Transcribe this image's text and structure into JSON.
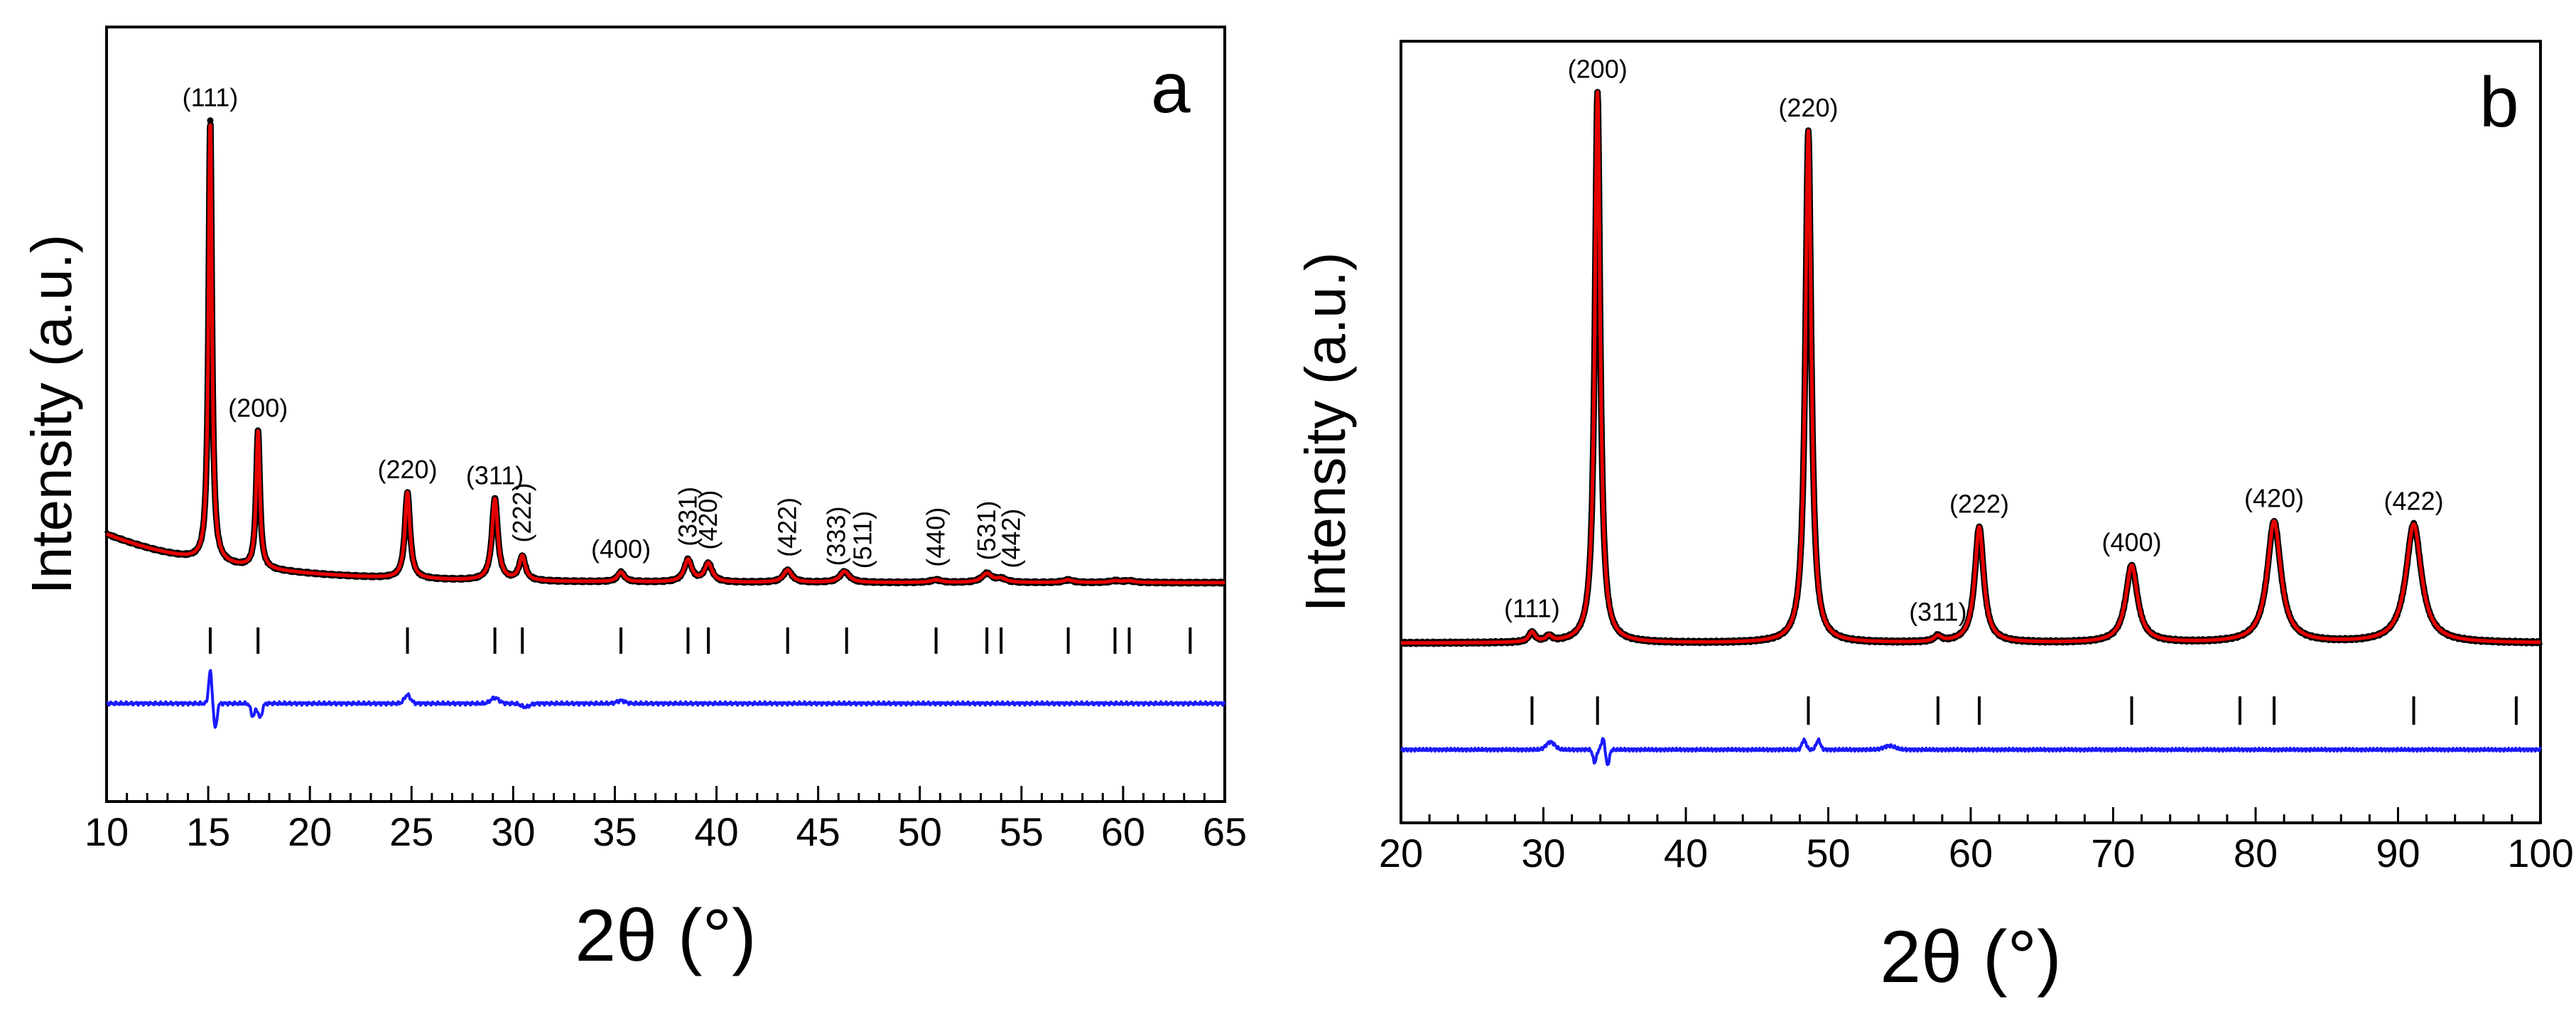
{
  "chart_data": [
    {
      "type": "line",
      "panel": "a",
      "xlabel": "2θ (°)",
      "ylabel": "Intensity (a.u.)",
      "xlim": [
        10,
        65
      ],
      "xticks": [
        10,
        15,
        20,
        25,
        30,
        35,
        40,
        45,
        50,
        55,
        60,
        65
      ],
      "yticks_shown": false,
      "series": [
        {
          "name": "observed",
          "style": "black dots"
        },
        {
          "name": "calculated",
          "style": "red line"
        },
        {
          "name": "difference",
          "style": "blue line"
        },
        {
          "name": "Bragg positions",
          "style": "black vertical ticks"
        }
      ],
      "background": {
        "start": 0.11,
        "end": 0.0,
        "decay": 6.0
      },
      "baseline": 0.0,
      "peaks": [
        {
          "label": "(111)",
          "pos": 15.1,
          "height": 1.0,
          "fwhm": 0.2
        },
        {
          "label": "(200)",
          "pos": 17.45,
          "height": 0.31,
          "fwhm": 0.22
        },
        {
          "label": "(220)",
          "pos": 24.8,
          "height": 0.195,
          "fwhm": 0.3
        },
        {
          "label": "(311)",
          "pos": 29.1,
          "height": 0.185,
          "fwhm": 0.34
        },
        {
          "label": "(222)",
          "pos": 30.45,
          "height": 0.055,
          "fwhm": 0.36
        },
        {
          "label": "(400)",
          "pos": 35.3,
          "height": 0.022,
          "fwhm": 0.4
        },
        {
          "label": "(331)",
          "pos": 38.6,
          "height": 0.05,
          "fwhm": 0.45
        },
        {
          "label": "(420)",
          "pos": 39.6,
          "height": 0.042,
          "fwhm": 0.45
        },
        {
          "label": "(422)",
          "pos": 43.5,
          "height": 0.028,
          "fwhm": 0.5
        },
        {
          "label": "(333)",
          "pos": 46.3,
          "height": 0.025,
          "fwhm": 0.55
        },
        {
          "label": "(511)",
          "pos": 46.4,
          "height": 0.0,
          "fwhm": 0.55
        },
        {
          "label": "(440)",
          "pos": 50.8,
          "height": 0.006,
          "fwhm": 0.6
        },
        {
          "label": "(531)",
          "pos": 53.3,
          "height": 0.02,
          "fwhm": 0.6
        },
        {
          "label": "(442)",
          "pos": 54.0,
          "height": 0.008,
          "fwhm": 0.6
        },
        {
          "label": "",
          "pos": 57.3,
          "height": 0.006,
          "fwhm": 0.6
        },
        {
          "label": "",
          "pos": 59.6,
          "height": 0.004,
          "fwhm": 0.6
        },
        {
          "label": "",
          "pos": 60.3,
          "height": 0.004,
          "fwhm": 0.6
        }
      ],
      "bragg_positions": [
        15.1,
        17.45,
        24.8,
        29.1,
        30.45,
        35.3,
        38.6,
        39.6,
        43.5,
        46.4,
        50.8,
        53.3,
        54.0,
        57.3,
        59.6,
        60.3,
        63.3
      ],
      "difference_features": [
        {
          "pos": 15.1,
          "amp": 0.045,
          "width": 0.08
        },
        {
          "pos": 15.35,
          "amp": -0.035,
          "width": 0.08
        },
        {
          "pos": 17.2,
          "amp": -0.018,
          "width": 0.1
        },
        {
          "pos": 17.55,
          "amp": -0.02,
          "width": 0.1
        },
        {
          "pos": 24.8,
          "amp": 0.012,
          "width": 0.15
        },
        {
          "pos": 29.1,
          "amp": 0.008,
          "width": 0.2
        },
        {
          "pos": 30.6,
          "amp": -0.005,
          "width": 0.2
        },
        {
          "pos": 35.3,
          "amp": 0.004,
          "width": 0.2
        }
      ],
      "peak_labels": [
        {
          "text": "(111)",
          "pos": 15.1,
          "rot": false
        },
        {
          "text": "(200)",
          "pos": 17.45,
          "rot": false
        },
        {
          "text": "(220)",
          "pos": 24.8,
          "rot": false
        },
        {
          "text": "(311)",
          "pos": 29.1,
          "rot": false
        },
        {
          "text": "(222)",
          "pos": 30.45,
          "rot": true
        },
        {
          "text": "(400)",
          "pos": 35.3,
          "rot": false
        },
        {
          "text": "(331)",
          "pos": 38.6,
          "rot": true
        },
        {
          "text": "(420)",
          "pos": 39.6,
          "rot": true
        },
        {
          "text": "(422)",
          "pos": 43.5,
          "rot": true
        },
        {
          "text": "(333)",
          "pos": 45.9,
          "rot": true
        },
        {
          "text": "(511)",
          "pos": 47.2,
          "rot": true
        },
        {
          "text": "(440)",
          "pos": 50.8,
          "rot": true
        },
        {
          "text": "(531)",
          "pos": 53.3,
          "rot": true
        },
        {
          "text": "(442)",
          "pos": 54.5,
          "rot": true
        }
      ]
    },
    {
      "type": "line",
      "panel": "b",
      "xlabel": "2θ (°)",
      "ylabel": "Intensity (a.u.)",
      "xlim": [
        20,
        100
      ],
      "xticks": [
        20,
        30,
        40,
        50,
        60,
        70,
        80,
        90,
        100
      ],
      "yticks_shown": false,
      "series": [
        {
          "name": "observed",
          "style": "black dots"
        },
        {
          "name": "calculated",
          "style": "red line"
        },
        {
          "name": "difference",
          "style": "blue line"
        },
        {
          "name": "Bragg positions",
          "style": "black vertical ticks"
        }
      ],
      "background": {
        "start": 0.0,
        "end": 0.0,
        "decay": 1.0
      },
      "baseline": 0.0,
      "peaks": [
        {
          "label": "(111)",
          "pos": 29.2,
          "height": 0.018,
          "fwhm": 0.5
        },
        {
          "label": "",
          "pos": 30.4,
          "height": 0.01,
          "fwhm": 0.5
        },
        {
          "label": "(200)",
          "pos": 33.8,
          "height": 1.0,
          "fwhm": 0.45
        },
        {
          "label": "(220)",
          "pos": 48.6,
          "height": 0.93,
          "fwhm": 0.5
        },
        {
          "label": "(311)",
          "pos": 57.7,
          "height": 0.01,
          "fwhm": 0.6
        },
        {
          "label": "(222)",
          "pos": 60.6,
          "height": 0.21,
          "fwhm": 0.75
        },
        {
          "label": "(400)",
          "pos": 71.3,
          "height": 0.14,
          "fwhm": 1.0
        },
        {
          "label": "(420)",
          "pos": 81.3,
          "height": 0.22,
          "fwhm": 1.15
        },
        {
          "label": "(422)",
          "pos": 91.1,
          "height": 0.215,
          "fwhm": 1.3
        }
      ],
      "bragg_positions": [
        29.2,
        33.8,
        48.6,
        57.7,
        60.6,
        71.3,
        78.9,
        81.3,
        91.1,
        98.3
      ],
      "difference_features": [
        {
          "pos": 30.5,
          "amp": 0.012,
          "width": 0.3
        },
        {
          "pos": 33.6,
          "amp": -0.02,
          "width": 0.12
        },
        {
          "pos": 34.2,
          "amp": 0.018,
          "width": 0.12
        },
        {
          "pos": 34.5,
          "amp": -0.025,
          "width": 0.12
        },
        {
          "pos": 48.3,
          "amp": 0.015,
          "width": 0.15
        },
        {
          "pos": 49.3,
          "amp": 0.015,
          "width": 0.15
        },
        {
          "pos": 54.3,
          "amp": 0.006,
          "width": 0.4
        }
      ],
      "peak_labels": [
        {
          "text": "(111)",
          "pos": 29.2,
          "rot": false
        },
        {
          "text": "(200)",
          "pos": 33.8,
          "rot": false
        },
        {
          "text": "(220)",
          "pos": 48.6,
          "rot": false
        },
        {
          "text": "(311)",
          "pos": 57.7,
          "rot": false
        },
        {
          "text": "(222)",
          "pos": 60.6,
          "rot": false
        },
        {
          "text": "(400)",
          "pos": 71.3,
          "rot": false
        },
        {
          "text": "(420)",
          "pos": 81.3,
          "rot": false
        },
        {
          "text": "(422)",
          "pos": 91.1,
          "rot": false
        }
      ]
    }
  ]
}
